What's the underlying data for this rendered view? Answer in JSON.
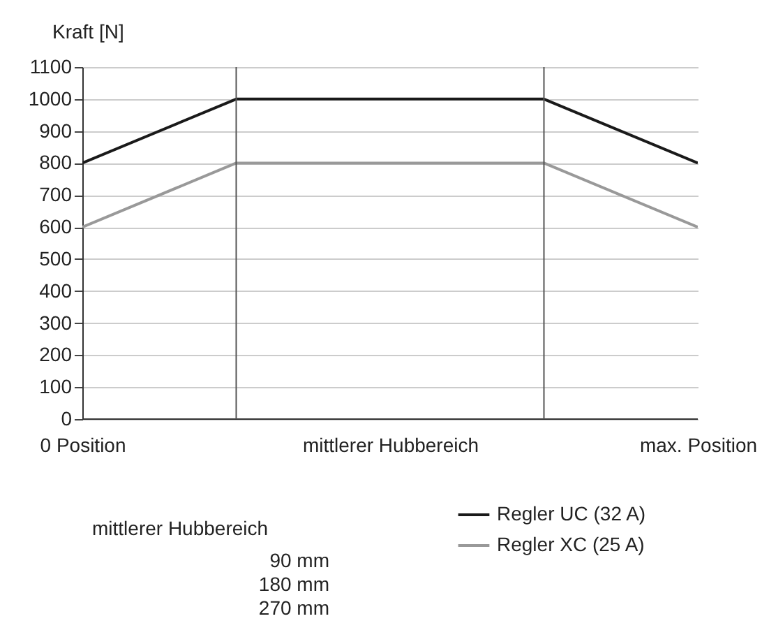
{
  "chart_data": {
    "type": "line",
    "ylabel": "Kraft [N]",
    "categories": [
      "0 Position",
      null,
      "mittlerer Hubbereich",
      null,
      "max. Position"
    ],
    "ylim": [
      0,
      1100
    ],
    "yticks": [
      0,
      100,
      200,
      300,
      400,
      500,
      600,
      700,
      800,
      900,
      1000,
      1100
    ],
    "series": [
      {
        "name": "Regler UC (32 A)",
        "color": "#1a1a1a",
        "values": [
          800,
          1000,
          1000,
          1000,
          800
        ]
      },
      {
        "name": "Regler XC (25 A)",
        "color": "#999999",
        "values": [
          600,
          800,
          800,
          800,
          600
        ]
      }
    ],
    "grid": true,
    "legend": "bottom right",
    "line_style": "solid",
    "annotations": [
      "mittlerer Hubbereich",
      "90 mm",
      "180 mm",
      "270 mm"
    ]
  }
}
